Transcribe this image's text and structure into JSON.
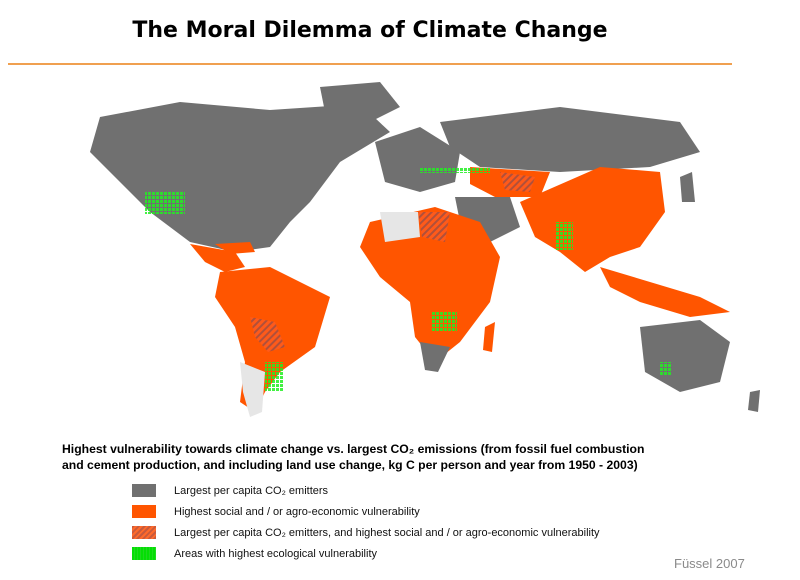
{
  "title": "The Moral Dilemma of Climate Change",
  "caption": {
    "line1": "Highest vulnerability towards climate change vs. largest CO₂ emissions (from fossil fuel combustion",
    "line2": "and cement production, and including land use change, kg C per person and year from 1950 - 2003)"
  },
  "legend": [
    {
      "label": "Largest per capita CO₂ emitters",
      "color": "#707070"
    },
    {
      "label": "Highest social and / or agro-economic vulnerability",
      "color": "#ff5500"
    },
    {
      "label": "Largest per capita CO₂ emitters, and highest social and / or agro-economic vulnerability",
      "color": "#c85a3c"
    },
    {
      "label": "Areas with highest ecological vulnerability",
      "color": "#22ee22"
    }
  ],
  "colors": {
    "emitters": "#707070",
    "vulnerable": "#ff5500",
    "both": "#c85a3c",
    "ecological": "#22ee22",
    "other_land": "#e6e6e6",
    "rule": "#f0a050"
  },
  "credit": "Füssel 2007"
}
